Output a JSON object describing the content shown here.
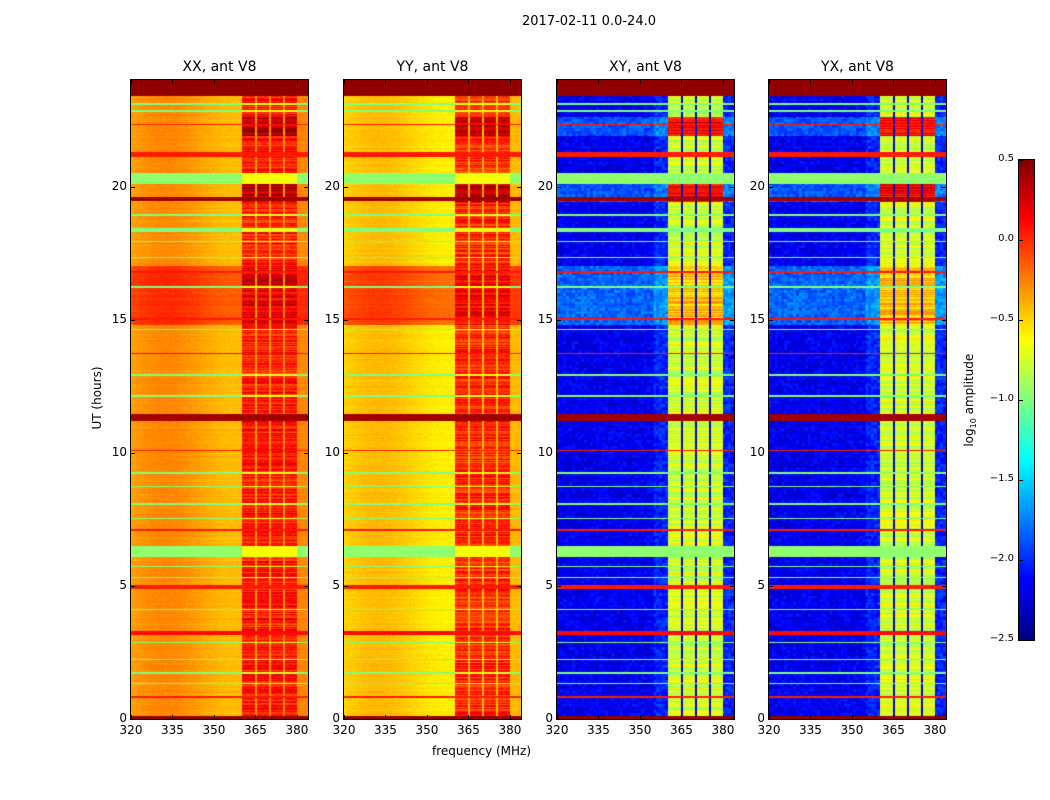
{
  "chart_data": {
    "type": "heatmap",
    "title": "2017-02-11 0.0-24.0",
    "xlabel": "frequency (MHz)",
    "ylabel": "UT (hours)",
    "xlim": [
      320,
      384
    ],
    "ylim": [
      0,
      24
    ],
    "xticks": [
      320,
      335,
      350,
      365,
      380
    ],
    "yticks": [
      0,
      5,
      10,
      15,
      20
    ],
    "colorbar": {
      "label_main": "log",
      "label_sub": "10",
      "label_rest": " amplitude",
      "clim": [
        -2.5,
        0.5
      ],
      "colormap": "jet",
      "ticks": [
        "0.5",
        "0.0",
        "−0.5",
        "−1.0",
        "−1.5",
        "−2.0",
        "−2.5"
      ],
      "tick_values": [
        0.5,
        0.0,
        -0.5,
        -1.0,
        -1.5,
        -2.0,
        -2.5
      ]
    },
    "sub_bands_mhz": [
      [
        360,
        365
      ],
      [
        365,
        370
      ],
      [
        370,
        375
      ],
      [
        375,
        380
      ]
    ],
    "panels": [
      {
        "title": "XX, ant V8",
        "kind": "parallel",
        "base": -0.35,
        "band": 0.05,
        "gap": -0.3,
        "day_boost": 0.28,
        "show_yticks": true
      },
      {
        "title": "YY, ant V8",
        "kind": "parallel",
        "base": -0.5,
        "band": 0.0,
        "gap": -0.4,
        "day_boost": 0.38,
        "show_yticks": true
      },
      {
        "title": "XY, ant V8",
        "kind": "cross",
        "base": -2.2,
        "band": -0.75,
        "gap": -2.3,
        "day_boost": 0.35,
        "show_yticks": true
      },
      {
        "title": "YX, ant V8",
        "kind": "cross",
        "base": -2.2,
        "band": -0.75,
        "gap": -2.3,
        "day_boost": 0.35,
        "show_yticks": true
      }
    ],
    "horizontal_features_hours": [
      {
        "t0": 0.0,
        "t1": 0.12,
        "v": 0.45
      },
      {
        "t0": 0.78,
        "t1": 0.85,
        "v": 0.05
      },
      {
        "t0": 1.3,
        "t1": 1.36,
        "v": -1.0
      },
      {
        "t0": 1.7,
        "t1": 1.75,
        "v": -1.0
      },
      {
        "t0": 2.2,
        "t1": 2.26,
        "v": -1.0
      },
      {
        "t0": 2.85,
        "t1": 2.9,
        "v": -1.0
      },
      {
        "t0": 3.15,
        "t1": 3.32,
        "v": 0.1
      },
      {
        "t0": 4.1,
        "t1": 4.15,
        "v": -1.0
      },
      {
        "t0": 4.9,
        "t1": 5.05,
        "v": 0.05
      },
      {
        "t0": 5.3,
        "t1": 5.35,
        "v": -1.0
      },
      {
        "t0": 5.7,
        "t1": 5.75,
        "v": -1.0
      },
      {
        "t0": 6.1,
        "t1": 6.5,
        "v": -0.95
      },
      {
        "t0": 7.05,
        "t1": 7.12,
        "v": 0.05
      },
      {
        "t0": 7.5,
        "t1": 7.56,
        "v": -1.0
      },
      {
        "t0": 8.05,
        "t1": 8.1,
        "v": -1.0
      },
      {
        "t0": 8.7,
        "t1": 8.75,
        "v": -1.0
      },
      {
        "t0": 9.2,
        "t1": 9.26,
        "v": -1.0
      },
      {
        "t0": 10.05,
        "t1": 10.12,
        "v": 0.05
      },
      {
        "t0": 11.2,
        "t1": 11.45,
        "v": 0.4
      },
      {
        "t0": 12.1,
        "t1": 12.16,
        "v": -1.0
      },
      {
        "t0": 12.9,
        "t1": 12.96,
        "v": -1.0
      },
      {
        "t0": 13.7,
        "t1": 13.76,
        "v": 0.05
      },
      {
        "t0": 14.6,
        "t1": 14.66,
        "v": -1.0
      },
      {
        "t0": 15.0,
        "t1": 15.06,
        "v": 0.05
      },
      {
        "t0": 16.2,
        "t1": 16.26,
        "v": -1.0
      },
      {
        "t0": 16.75,
        "t1": 16.82,
        "v": 0.05
      },
      {
        "t0": 17.3,
        "t1": 17.36,
        "v": -1.0
      },
      {
        "t0": 17.9,
        "t1": 17.96,
        "v": -1.0
      },
      {
        "t0": 18.3,
        "t1": 18.45,
        "v": -1.0
      },
      {
        "t0": 18.9,
        "t1": 18.96,
        "v": -1.0
      },
      {
        "t0": 19.45,
        "t1": 19.6,
        "v": 0.4
      },
      {
        "t0": 20.1,
        "t1": 20.5,
        "v": -0.95
      },
      {
        "t0": 21.1,
        "t1": 21.3,
        "v": 0.05
      },
      {
        "t0": 22.3,
        "t1": 22.36,
        "v": 0.05
      },
      {
        "t0": 22.8,
        "t1": 22.86,
        "v": -1.0
      },
      {
        "t0": 23.05,
        "t1": 23.15,
        "v": -1.0
      },
      {
        "t0": 23.4,
        "t1": 24.0,
        "v": 0.45
      }
    ],
    "day_band_hours": [
      14.8,
      17.0
    ],
    "band_bright_hours": [
      [
        19.4,
        20.2
      ],
      [
        21.9,
        22.6
      ]
    ]
  }
}
